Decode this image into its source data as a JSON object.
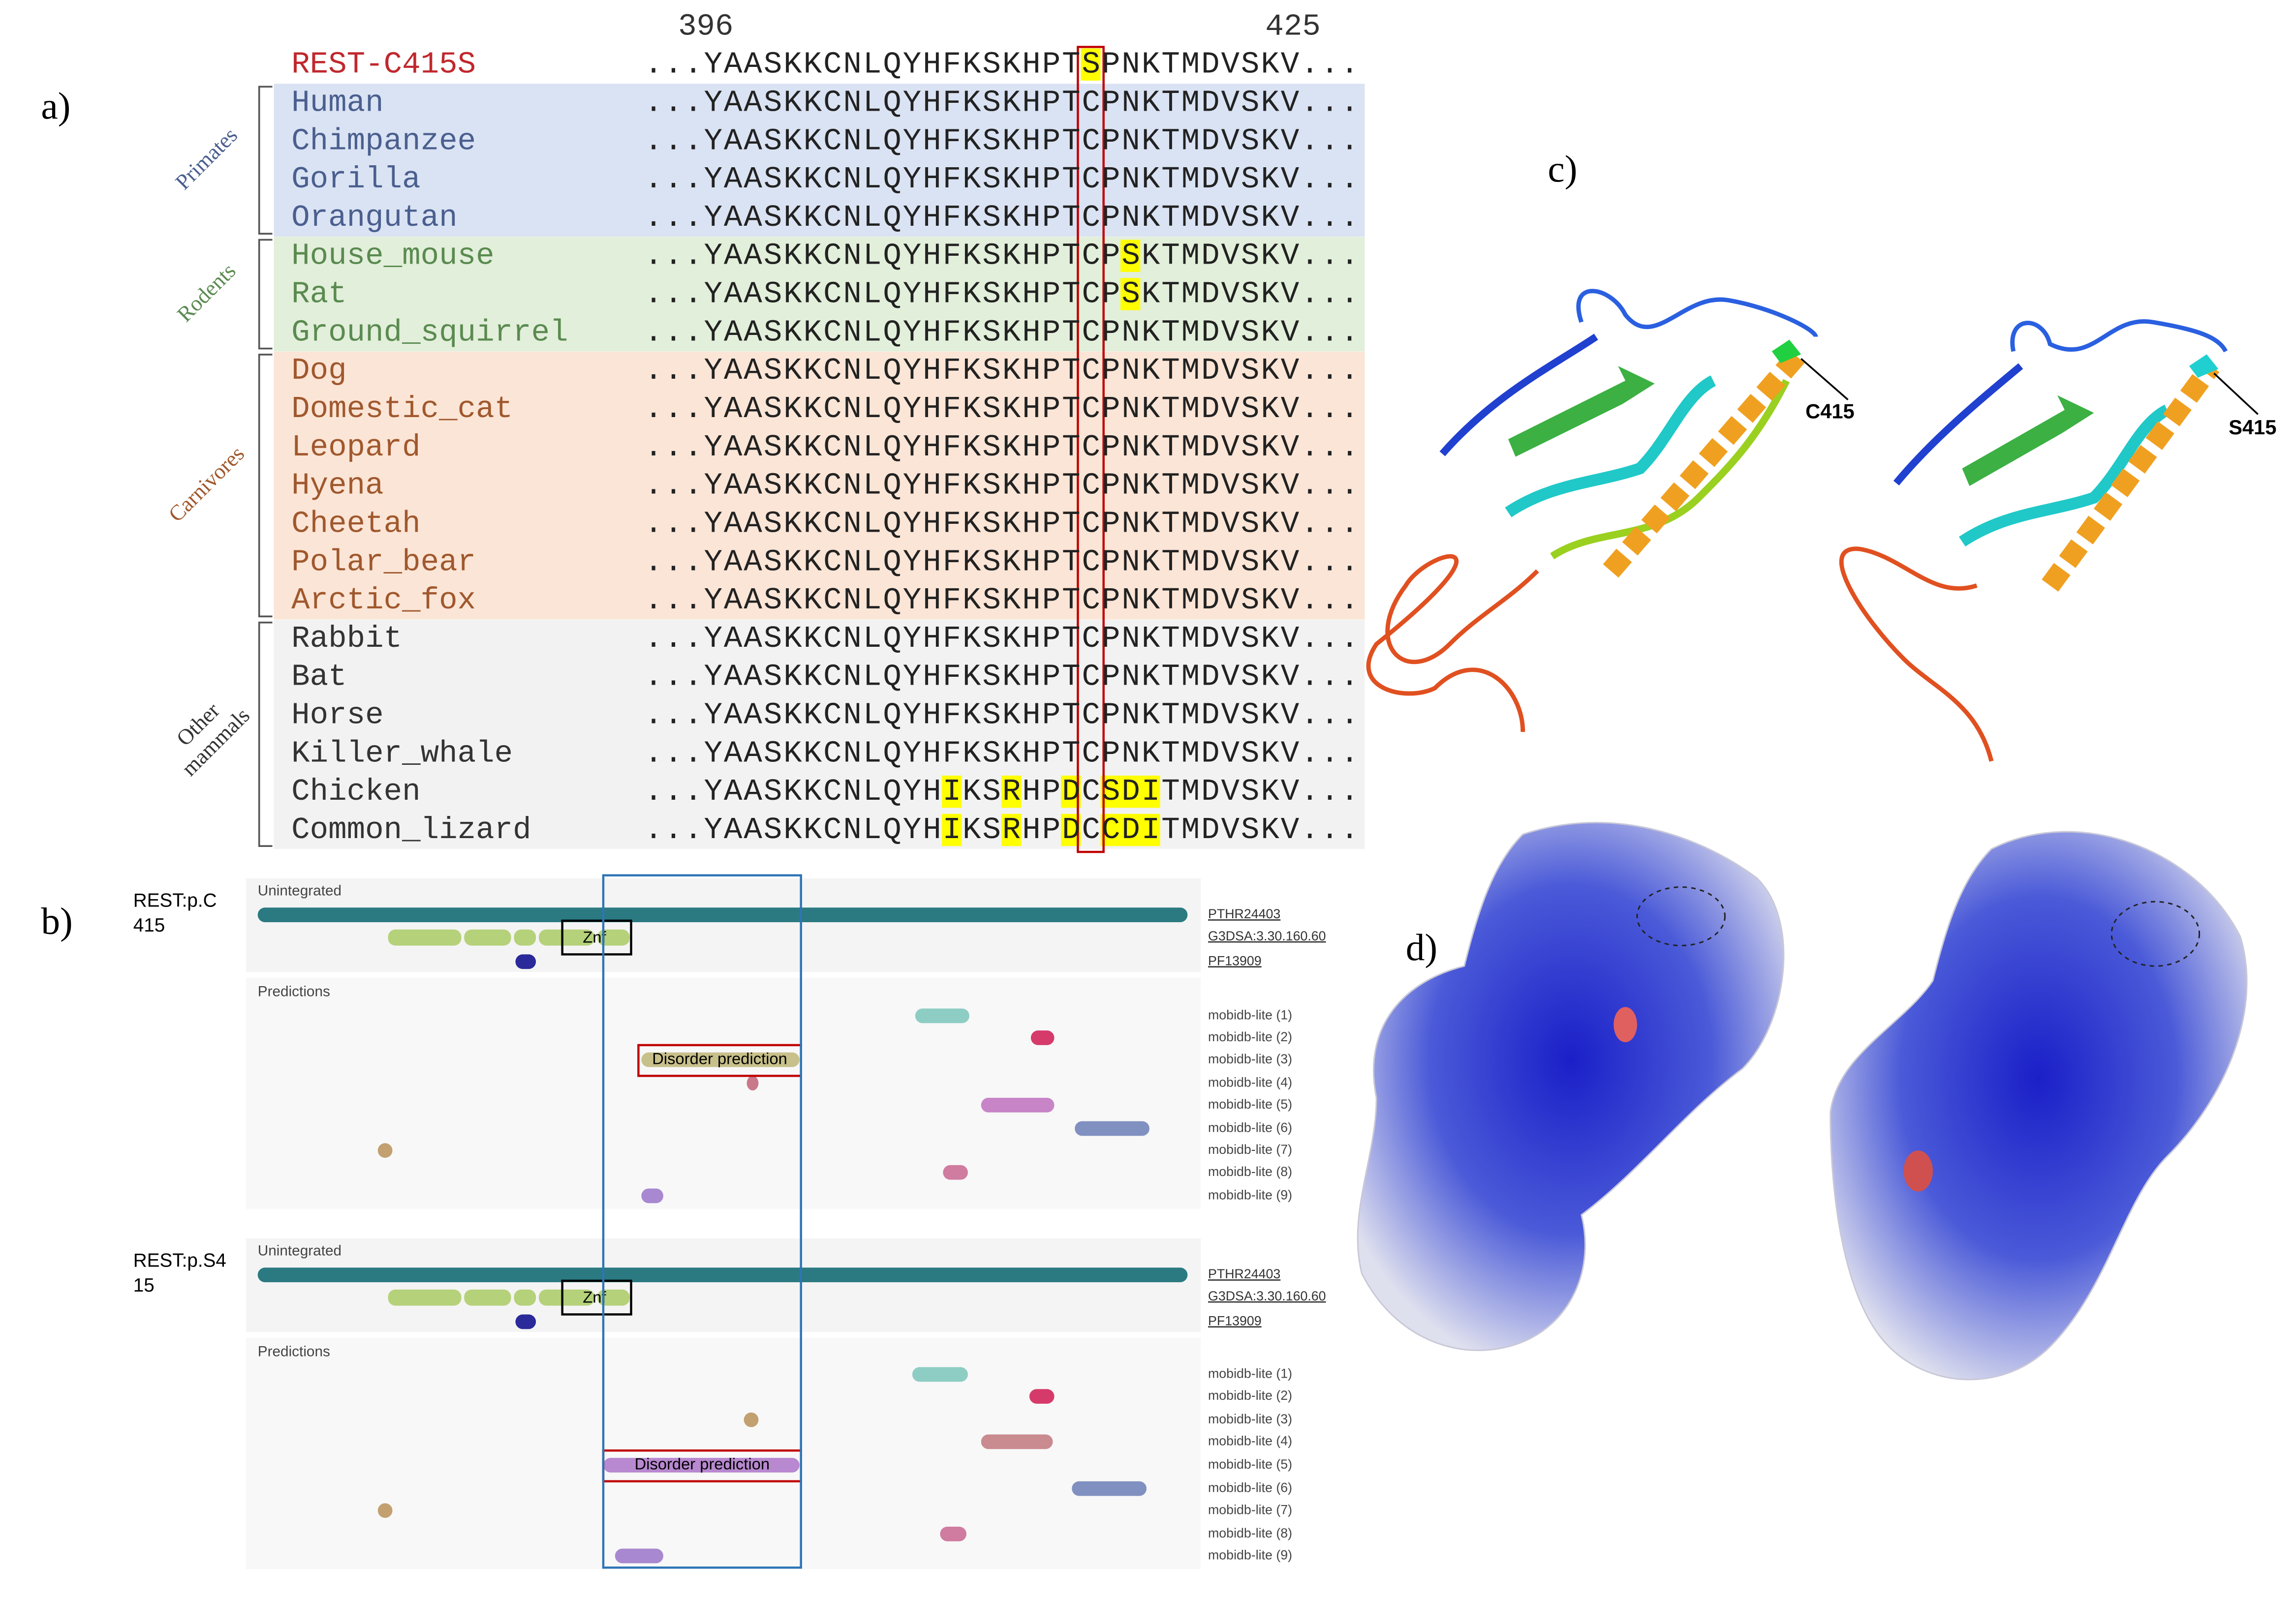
{
  "panel_labels": {
    "a": "a)",
    "b": "b)",
    "c": "c)",
    "d": "d)"
  },
  "alignment": {
    "start_position": "396",
    "end_position": "425",
    "rows": [
      {
        "name": "REST-C415S",
        "sequence": "...YAASKKCNLQYHFKSKHPTSPNKTMDVSKV..."
      },
      {
        "name": "Human",
        "sequence": "...YAASKKCNLQYHFKSKHPTCPNKTMDVSKV..."
      },
      {
        "name": "Chimpanzee",
        "sequence": "...YAASKKCNLQYHFKSKHPTCPNKTMDVSKV..."
      },
      {
        "name": "Gorilla",
        "sequence": "...YAASKKCNLQYHFKSKHPTCPNKTMDVSKV..."
      },
      {
        "name": "Orangutan",
        "sequence": "...YAASKKCNLQYHFKSKHPTCPNKTMDVSKV..."
      },
      {
        "name": "House_mouse",
        "sequence": "...YAASKKCNLQYHFKSKHPTCPSKTMDVSKV..."
      },
      {
        "name": "Rat",
        "sequence": "...YAASKKCNLQYHFKSKHPTCPSKTMDVSKV..."
      },
      {
        "name": "Ground_squirrel",
        "sequence": "...YAASKKCNLQYHFKSKHPTCPNKTMDVSKV..."
      },
      {
        "name": "Dog",
        "sequence": "...YAASKKCNLQYHFKSKHPTCPNKTMDVSKV..."
      },
      {
        "name": "Domestic_cat",
        "sequence": "...YAASKKCNLQYHFKSKHPTCPNKTMDVSKV..."
      },
      {
        "name": "Leopard",
        "sequence": "...YAASKKCNLQYHFKSKHPTCPNKTMDVSKV..."
      },
      {
        "name": "Hyena",
        "sequence": "...YAASKKCNLQYHFKSKHPTCPNKTMDVSKV..."
      },
      {
        "name": "Cheetah",
        "sequence": "...YAASKKCNLQYHFKSKHPTCPNKTMDVSKV..."
      },
      {
        "name": "Polar_bear",
        "sequence": "...YAASKKCNLQYHFKSKHPTCPNKTMDVSKV..."
      },
      {
        "name": "Arctic_fox",
        "sequence": "...YAASKKCNLQYHFKSKHPTCPNKTMDVSKV..."
      },
      {
        "name": "Rabbit",
        "sequence": "...YAASKKCNLQYHFKSKHPTCPNKTMDVSKV..."
      },
      {
        "name": "Bat",
        "sequence": "...YAASKKCNLQYHFKSKHPTCPNKTMDVSKV..."
      },
      {
        "name": "Horse",
        "sequence": "...YAASKKCNLQYHFKSKHPTCPNKTMDVSKV..."
      },
      {
        "name": "Killer_whale",
        "sequence": "...YAASKKCNLQYHFKSKHPTCPNKTMDVSKV..."
      },
      {
        "name": "Chicken",
        "sequence": "...YAASKKCNLQYHIKSRHPDCSDITMDVSKV..."
      },
      {
        "name": "Common_lizard",
        "sequence": "...YAASKKCNLQYHIKSRHPDCCDITMDVSKV..."
      }
    ],
    "groups": [
      {
        "label": "Primates"
      },
      {
        "label": "Rodents"
      },
      {
        "label": "Carnivores"
      },
      {
        "label_lines": [
          "Other",
          "mammals"
        ]
      }
    ]
  },
  "tracks": [
    {
      "label_lines": [
        "REST:p.C",
        "415"
      ],
      "unintegrated": "Unintegrated",
      "predictions": "Predictions",
      "znf": "Znf",
      "disorder": "Disorder prediction",
      "entries": [
        "PTHR24403",
        "G3DSA:3.30.160.60",
        "PF13909"
      ],
      "mobidb": [
        "mobidb-lite (1)",
        "mobidb-lite (2)",
        "mobidb-lite (3)",
        "mobidb-lite (4)",
        "mobidb-lite (5)",
        "mobidb-lite (6)",
        "mobidb-lite (7)",
        "mobidb-lite (8)",
        "mobidb-lite (9)"
      ]
    },
    {
      "label_lines": [
        "REST:p.S4",
        "15"
      ],
      "unintegrated": "Unintegrated",
      "predictions": "Predictions",
      "znf": "Znf",
      "disorder": "Disorder prediction",
      "entries": [
        "PTHR24403",
        "G3DSA:3.30.160.60",
        "PF13909"
      ],
      "mobidb": [
        "mobidb-lite (1)",
        "mobidb-lite (2)",
        "mobidb-lite (3)",
        "mobidb-lite (4)",
        "mobidb-lite (5)",
        "mobidb-lite (6)",
        "mobidb-lite (7)",
        "mobidb-lite (8)",
        "mobidb-lite (9)"
      ]
    }
  ],
  "structures": {
    "left_label": "C415",
    "right_label": "S415"
  }
}
